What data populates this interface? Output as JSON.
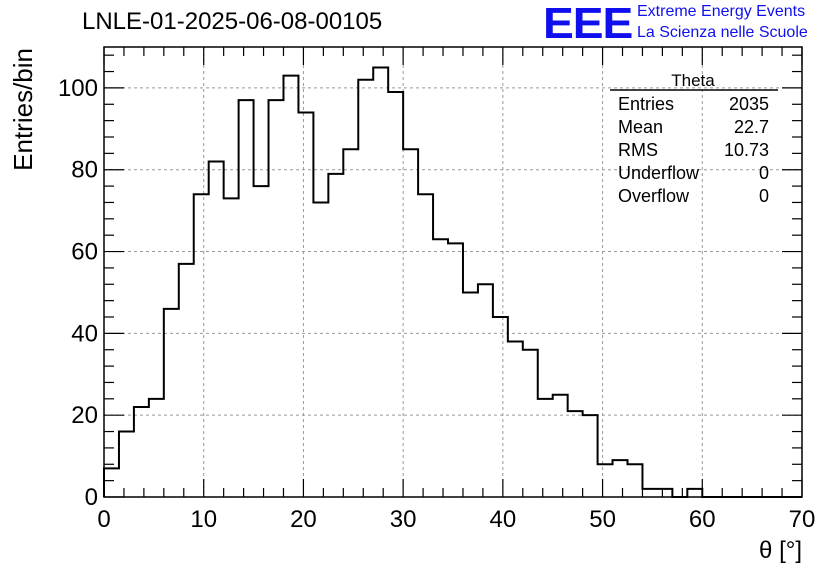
{
  "header": {
    "title": "LNLE-01-2025-06-08-00105"
  },
  "logo": {
    "mark": "EEE",
    "line1": "Extreme Energy Events",
    "line2": "La Scienza nelle Scuole",
    "color": "#1010ee"
  },
  "stats_box": {
    "title": "Theta",
    "rows": [
      {
        "label": "Entries",
        "value": "2035"
      },
      {
        "label": "Mean",
        "value": "22.7"
      },
      {
        "label": "RMS",
        "value": "10.73"
      },
      {
        "label": "Underflow",
        "value": "0"
      },
      {
        "label": "Overflow",
        "value": "0"
      }
    ]
  },
  "chart_data": {
    "type": "bar",
    "style": "step-histogram",
    "xlabel": "θ [°]",
    "ylabel": "Entries/bin",
    "xlim": [
      0,
      70
    ],
    "ylim": [
      0,
      110
    ],
    "bin_width": 1.5,
    "x_ticks": [
      0,
      10,
      20,
      30,
      40,
      50,
      60,
      70
    ],
    "y_ticks": [
      0,
      20,
      40,
      60,
      80,
      100
    ],
    "grid": true,
    "bin_edges_start": 0,
    "values": [
      7,
      16,
      22,
      24,
      46,
      57,
      74,
      82,
      73,
      97,
      76,
      97,
      103,
      94,
      72,
      79,
      85,
      102,
      105,
      99,
      85,
      74,
      63,
      62,
      50,
      52,
      44,
      38,
      36,
      24,
      25,
      21,
      20,
      8,
      9,
      8,
      2,
      2,
      0,
      2,
      0,
      0,
      0,
      0,
      0,
      0,
      0
    ],
    "line_color": "#000000"
  }
}
